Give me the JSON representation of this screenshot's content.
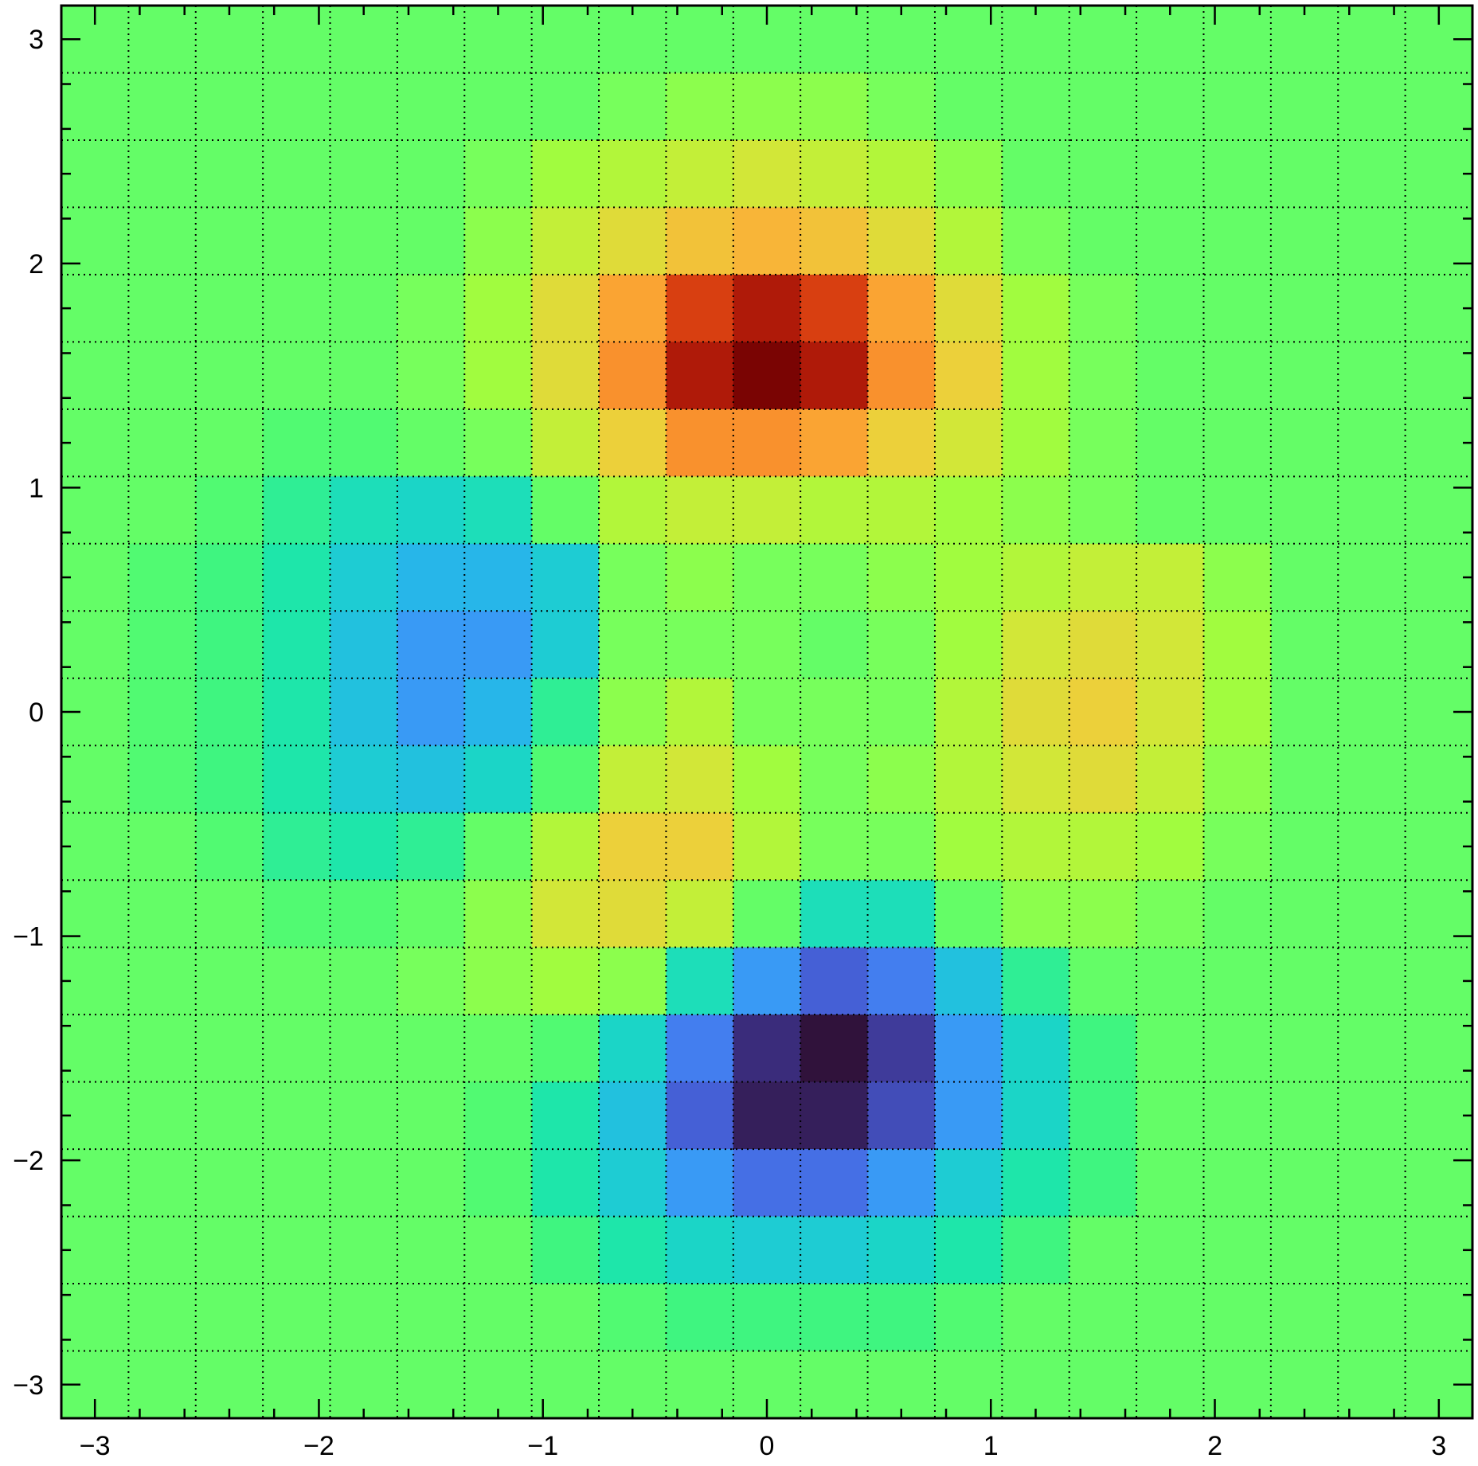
{
  "chart_data": {
    "type": "heatmap",
    "title": "",
    "xlabel": "",
    "ylabel": "",
    "xlim": [
      -3.15,
      3.15
    ],
    "ylim": [
      -3.15,
      3.15
    ],
    "grid": true,
    "colormap": "turbo",
    "vmin": -1,
    "vmax": 1,
    "x_ticks": [
      -3,
      -2,
      -1,
      0,
      1,
      2,
      3
    ],
    "y_ticks": [
      -3,
      -2,
      -1,
      0,
      1,
      2,
      3
    ],
    "x_tick_labels": [
      "−3",
      "−2",
      "−1",
      "0",
      "1",
      "2",
      "3"
    ],
    "y_tick_labels": [
      "−3",
      "−2",
      "−1",
      "0",
      "1",
      "2",
      "3"
    ],
    "x_edges": [
      -3.15,
      -2.85,
      -2.55,
      -2.25,
      -1.95,
      -1.65,
      -1.35,
      -1.05,
      -0.75,
      -0.45,
      -0.15,
      0.15,
      0.45,
      0.75,
      1.05,
      1.35,
      1.65,
      1.95,
      2.25,
      2.55,
      2.85,
      3.15
    ],
    "y_edges": [
      3.15,
      2.85,
      2.55,
      2.25,
      1.95,
      1.65,
      1.35,
      1.05,
      0.75,
      0.45,
      0.15,
      -0.15,
      -0.45,
      -0.75,
      -1.05,
      -1.35,
      -1.65,
      -1.95,
      -2.25,
      -2.55,
      -2.85,
      -3.15
    ],
    "z": [
      [
        0.0,
        0.0,
        0.0,
        0.0,
        0.0,
        0.0,
        0.0,
        0.0,
        0.0,
        0.0,
        0.0,
        0.0,
        0.0,
        0.0,
        0.0,
        0.0,
        0.0,
        0.0,
        0.0,
        0.0,
        0.0
      ],
      [
        0.0,
        0.0,
        0.0,
        0.0,
        0.0,
        0.0,
        0.0,
        0.0,
        0.05,
        0.1,
        0.1,
        0.1,
        0.05,
        0.0,
        0.0,
        0.0,
        0.0,
        0.0,
        0.0,
        0.0,
        0.0
      ],
      [
        0.0,
        0.0,
        0.0,
        0.0,
        0.0,
        0.0,
        0.05,
        0.15,
        0.2,
        0.25,
        0.3,
        0.25,
        0.2,
        0.1,
        0.0,
        0.0,
        0.0,
        0.0,
        0.0,
        0.0,
        0.0
      ],
      [
        0.0,
        0.0,
        0.0,
        0.0,
        0.0,
        0.0,
        0.1,
        0.25,
        0.35,
        0.45,
        0.5,
        0.45,
        0.35,
        0.2,
        0.05,
        0.0,
        0.0,
        0.0,
        0.0,
        0.0,
        0.0
      ],
      [
        0.0,
        0.0,
        0.0,
        0.0,
        0.0,
        0.05,
        0.15,
        0.35,
        0.55,
        0.8,
        0.9,
        0.8,
        0.55,
        0.35,
        0.15,
        0.05,
        0.0,
        0.0,
        0.0,
        0.0,
        0.0
      ],
      [
        0.0,
        0.0,
        0.0,
        0.0,
        0.0,
        0.05,
        0.15,
        0.35,
        0.6,
        0.9,
        1.0,
        0.9,
        0.6,
        0.4,
        0.15,
        0.05,
        0.0,
        0.0,
        0.0,
        0.0,
        0.0
      ],
      [
        0.0,
        0.0,
        0.0,
        -0.05,
        -0.05,
        0.0,
        0.05,
        0.25,
        0.4,
        0.6,
        0.6,
        0.55,
        0.4,
        0.3,
        0.15,
        0.05,
        0.0,
        0.0,
        0.0,
        0.0,
        0.0
      ],
      [
        0.0,
        0.0,
        -0.05,
        -0.15,
        -0.25,
        -0.3,
        -0.25,
        0.0,
        0.2,
        0.25,
        0.25,
        0.2,
        0.2,
        0.15,
        0.1,
        0.05,
        0.0,
        0.0,
        0.0,
        0.0,
        0.0
      ],
      [
        0.0,
        -0.05,
        -0.1,
        -0.2,
        -0.35,
        -0.45,
        -0.45,
        -0.35,
        0.05,
        0.1,
        0.05,
        0.05,
        0.1,
        0.15,
        0.2,
        0.25,
        0.25,
        0.1,
        0.0,
        0.0,
        0.0
      ],
      [
        0.0,
        -0.05,
        -0.1,
        -0.2,
        -0.4,
        -0.55,
        -0.55,
        -0.35,
        0.05,
        0.05,
        0.05,
        0.0,
        0.05,
        0.15,
        0.3,
        0.35,
        0.3,
        0.15,
        0.0,
        0.0,
        0.0
      ],
      [
        0.0,
        -0.05,
        -0.1,
        -0.2,
        -0.4,
        -0.55,
        -0.45,
        -0.15,
        0.1,
        0.2,
        0.05,
        0.05,
        0.05,
        0.2,
        0.35,
        0.4,
        0.3,
        0.15,
        0.0,
        0.0,
        0.0
      ],
      [
        0.0,
        -0.05,
        -0.1,
        -0.2,
        -0.35,
        -0.4,
        -0.3,
        -0.05,
        0.25,
        0.3,
        0.15,
        0.05,
        0.1,
        0.2,
        0.3,
        0.35,
        0.25,
        0.1,
        0.0,
        0.0,
        0.0
      ],
      [
        0.0,
        0.0,
        -0.05,
        -0.15,
        -0.2,
        -0.15,
        0.0,
        0.2,
        0.4,
        0.4,
        0.2,
        0.05,
        0.05,
        0.15,
        0.2,
        0.2,
        0.15,
        0.05,
        0.0,
        0.0,
        0.0
      ],
      [
        0.0,
        0.0,
        0.0,
        -0.05,
        -0.05,
        0.0,
        0.1,
        0.3,
        0.35,
        0.25,
        0.0,
        -0.25,
        -0.25,
        0.0,
        0.1,
        0.1,
        0.05,
        0.0,
        0.0,
        0.0,
        0.0
      ],
      [
        0.0,
        0.0,
        0.0,
        0.0,
        0.0,
        0.05,
        0.1,
        0.15,
        0.1,
        -0.25,
        -0.55,
        -0.75,
        -0.65,
        -0.4,
        -0.15,
        0.0,
        0.0,
        0.0,
        0.0,
        0.0,
        0.0
      ],
      [
        0.0,
        0.0,
        0.0,
        0.0,
        0.0,
        0.0,
        0.0,
        -0.05,
        -0.3,
        -0.65,
        -0.9,
        -1.0,
        -0.85,
        -0.55,
        -0.3,
        -0.1,
        0.0,
        0.0,
        0.0,
        0.0,
        0.0
      ],
      [
        0.0,
        0.0,
        0.0,
        0.0,
        0.0,
        0.0,
        -0.05,
        -0.2,
        -0.4,
        -0.75,
        -0.95,
        -0.95,
        -0.8,
        -0.55,
        -0.3,
        -0.1,
        0.0,
        0.0,
        0.0,
        0.0,
        0.0
      ],
      [
        0.0,
        0.0,
        0.0,
        0.0,
        0.0,
        0.0,
        -0.05,
        -0.2,
        -0.35,
        -0.55,
        -0.7,
        -0.7,
        -0.55,
        -0.35,
        -0.2,
        -0.1,
        0.0,
        0.0,
        0.0,
        0.0,
        0.0
      ],
      [
        0.0,
        0.0,
        0.0,
        0.0,
        0.0,
        0.0,
        0.0,
        -0.1,
        -0.2,
        -0.3,
        -0.35,
        -0.35,
        -0.3,
        -0.2,
        -0.1,
        0.0,
        0.0,
        0.0,
        0.0,
        0.0,
        0.0
      ],
      [
        0.0,
        0.0,
        0.0,
        0.0,
        0.0,
        0.0,
        0.0,
        0.0,
        -0.05,
        -0.1,
        -0.1,
        -0.1,
        -0.1,
        -0.05,
        0.0,
        0.0,
        0.0,
        0.0,
        0.0,
        0.0,
        0.0
      ],
      [
        0.0,
        0.0,
        0.0,
        0.0,
        0.0,
        0.0,
        0.0,
        0.0,
        0.0,
        0.0,
        0.0,
        0.0,
        0.0,
        0.0,
        0.0,
        0.0,
        0.0,
        0.0,
        0.0,
        0.0,
        0.0
      ]
    ]
  }
}
